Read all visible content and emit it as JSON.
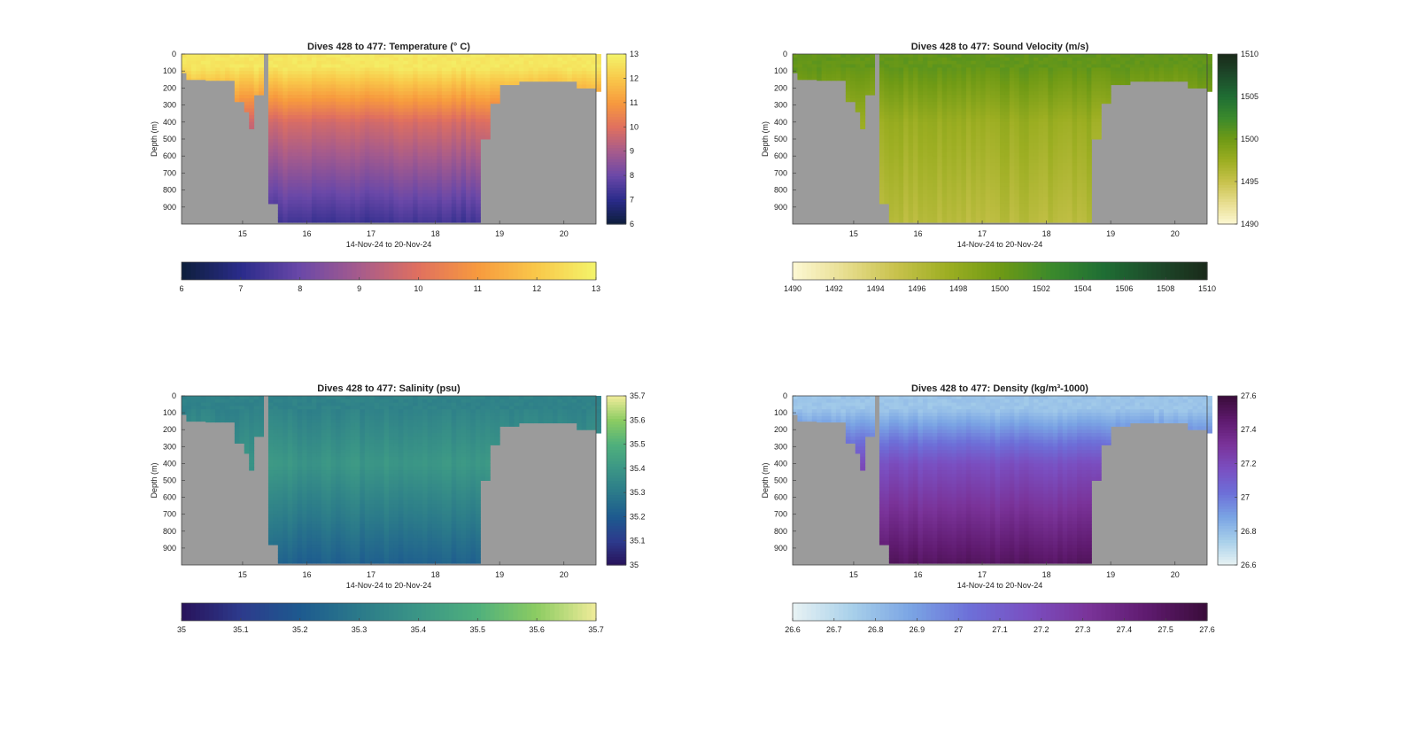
{
  "chart_data": [
    {
      "type": "heatmap",
      "title": "Dives 428 to 477: Temperature (° C)",
      "xlabel": "14-Nov-24 to 20-Nov-24",
      "ylabel": "Depth (m)",
      "x_ticks": [
        "15",
        "16",
        "17",
        "18",
        "19",
        "20"
      ],
      "y_ticks": [
        "0",
        "100",
        "200",
        "300",
        "400",
        "500",
        "600",
        "700",
        "800",
        "900"
      ],
      "xlim": [
        14.05,
        20.5
      ],
      "ylim": [
        0,
        1000
      ],
      "y_reversed": true,
      "colorbar_side": {
        "ticks": [
          "6",
          "7",
          "8",
          "9",
          "10",
          "11",
          "12",
          "13"
        ],
        "range": [
          6,
          13
        ]
      },
      "colorbar_bottom": {
        "ticks": [
          "6",
          "7",
          "8",
          "9",
          "10",
          "11",
          "12",
          "13"
        ],
        "range": [
          6,
          13
        ]
      },
      "colormap": [
        "#0d1e3b",
        "#2a2b8a",
        "#6a48a8",
        "#a65b8c",
        "#e0705f",
        "#f79a3e",
        "#f9c84a",
        "#f3f46a"
      ],
      "profile": {
        "surface": 12.7,
        "mid": 9.8,
        "deep": 7.3,
        "mixed_layer_m": 80
      }
    },
    {
      "type": "heatmap",
      "title": "Dives 428 to 477: Sound Velocity (m/s)",
      "xlabel": "14-Nov-24 to 20-Nov-24",
      "ylabel": "Depth (m)",
      "x_ticks": [
        "15",
        "16",
        "17",
        "18",
        "19",
        "20"
      ],
      "y_ticks": [
        "0",
        "100",
        "200",
        "300",
        "400",
        "500",
        "600",
        "700",
        "800",
        "900"
      ],
      "xlim": [
        14.05,
        20.5
      ],
      "ylim": [
        0,
        1000
      ],
      "y_reversed": true,
      "colorbar_side": {
        "ticks": [
          "1490",
          "1495",
          "1500",
          "1505",
          "1510"
        ],
        "range": [
          1490,
          1510
        ]
      },
      "colorbar_bottom": {
        "ticks": [
          "1490",
          "1492",
          "1494",
          "1496",
          "1498",
          "1500",
          "1502",
          "1504",
          "1506",
          "1508",
          "1510"
        ],
        "range": [
          1490,
          1510
        ]
      },
      "colormap": [
        "#fdf8d4",
        "#e8de90",
        "#c8c24c",
        "#9cae22",
        "#6f9a15",
        "#3b8a2c",
        "#1f6e34",
        "#1d4a2a",
        "#1a2a1a"
      ],
      "profile": {
        "surface": 1500.6,
        "mid": 1497.6,
        "deep": 1495.8,
        "mixed_layer_m": 80
      }
    },
    {
      "type": "heatmap",
      "title": "Dives 428 to 477: Salinity (psu)",
      "xlabel": "14-Nov-24 to 20-Nov-24",
      "ylabel": "Depth (m)",
      "x_ticks": [
        "15",
        "16",
        "17",
        "18",
        "19",
        "20"
      ],
      "y_ticks": [
        "0",
        "100",
        "200",
        "300",
        "400",
        "500",
        "600",
        "700",
        "800",
        "900"
      ],
      "xlim": [
        14.05,
        20.5
      ],
      "ylim": [
        0,
        1000
      ],
      "y_reversed": true,
      "colorbar_side": {
        "ticks": [
          "35",
          "35.1",
          "35.2",
          "35.3",
          "35.4",
          "35.5",
          "35.6",
          "35.7"
        ],
        "range": [
          35,
          35.7
        ]
      },
      "colorbar_bottom": {
        "ticks": [
          "35",
          "35.1",
          "35.2",
          "35.3",
          "35.4",
          "35.5",
          "35.6",
          "35.7"
        ],
        "range": [
          35,
          35.7
        ]
      },
      "colormap": [
        "#28125a",
        "#2d3a8c",
        "#1d5a8f",
        "#2b7a8a",
        "#3b9686",
        "#4fb07c",
        "#8ccc62",
        "#f0ec9a"
      ],
      "profile": {
        "surface": 35.33,
        "mid": 35.4,
        "deep": 35.22,
        "mixed_layer_m": 80
      }
    },
    {
      "type": "heatmap",
      "title": "Dives 428 to 477: Density (kg/m³-1000)",
      "xlabel": "14-Nov-24 to 20-Nov-24",
      "ylabel": "Depth (m)",
      "x_ticks": [
        "15",
        "16",
        "17",
        "18",
        "19",
        "20"
      ],
      "y_ticks": [
        "0",
        "100",
        "200",
        "300",
        "400",
        "500",
        "600",
        "700",
        "800",
        "900"
      ],
      "xlim": [
        14.05,
        20.5
      ],
      "ylim": [
        0,
        1000
      ],
      "y_reversed": true,
      "colorbar_side": {
        "ticks": [
          "26.6",
          "26.8",
          "27",
          "27.2",
          "27.4",
          "27.6"
        ],
        "range": [
          26.6,
          27.6
        ]
      },
      "colorbar_bottom": {
        "ticks": [
          "26.6",
          "26.7",
          "26.8",
          "26.9",
          "27",
          "27.1",
          "27.2",
          "27.3",
          "27.4",
          "27.5",
          "27.6"
        ],
        "range": [
          26.6,
          27.6
        ]
      },
      "colormap": [
        "#e9f3f4",
        "#a8d0ea",
        "#7aa4e4",
        "#6d6fd8",
        "#7a4fc1",
        "#7a3399",
        "#5e1a6e",
        "#3a0c3a"
      ],
      "profile": {
        "surface": 26.78,
        "mid": 27.17,
        "deep": 27.5,
        "mixed_layer_m": 80
      }
    }
  ]
}
